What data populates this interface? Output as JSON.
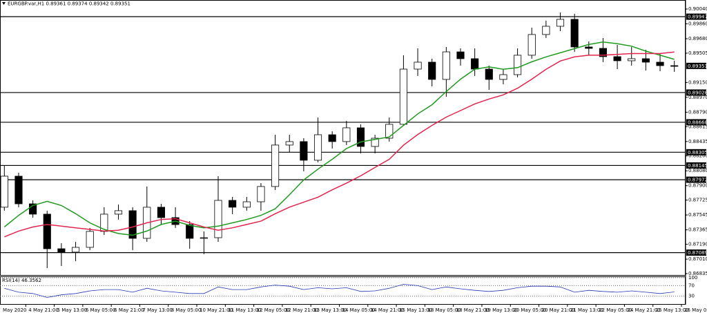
{
  "chart_data": {
    "type": "candlestick",
    "title": "EURGBP.var,H1  0.89361 0.89374 0.89342 0.89351",
    "open": [
      0.87639,
      0.88015,
      0.8768,
      0.87555,
      0.87136,
      0.87095,
      0.87153,
      0.87346,
      0.87555,
      0.87597,
      0.87262,
      0.87639,
      0.87513,
      0.87429,
      0.87262,
      0.8727,
      0.87722,
      0.87639,
      0.87705,
      0.8789,
      0.88392,
      0.88434,
      0.88208,
      0.88517,
      0.88434,
      0.88601,
      0.88375,
      0.88475,
      0.88643,
      0.89312,
      0.89396,
      0.89187,
      0.89521,
      0.89438,
      0.89312,
      0.89187,
      0.89245,
      0.8948,
      0.89731,
      0.89831,
      0.89915,
      0.8958,
      0.89563,
      0.89463,
      0.89413,
      0.89438,
      0.89396,
      0.89354
    ],
    "high": [
      0.88141,
      0.88057,
      0.87722,
      0.87597,
      0.87203,
      0.8722,
      0.87388,
      0.87639,
      0.87672,
      0.87639,
      0.8789,
      0.8768,
      0.87639,
      0.87471,
      0.87346,
      0.88015,
      0.87764,
      0.87764,
      0.87931,
      0.88517,
      0.88517,
      0.88475,
      0.88726,
      0.88559,
      0.88685,
      0.88643,
      0.88517,
      0.88726,
      0.8948,
      0.89563,
      0.89438,
      0.8958,
      0.89563,
      0.89563,
      0.89354,
      0.89312,
      0.89563,
      0.89814,
      0.89898,
      0.89998,
      0.89982,
      0.89647,
      0.89689,
      0.89605,
      0.8958,
      0.89547,
      0.89496,
      0.89413
    ],
    "low": [
      0.87597,
      0.87639,
      0.87513,
      0.86902,
      0.86927,
      0.86986,
      0.8712,
      0.87304,
      0.87488,
      0.8712,
      0.8722,
      0.87429,
      0.87388,
      0.87136,
      0.8707,
      0.8722,
      0.87555,
      0.87597,
      0.87597,
      0.87848,
      0.88308,
      0.88074,
      0.88183,
      0.8835,
      0.88392,
      0.88291,
      0.88291,
      0.88434,
      0.88626,
      0.89229,
      0.89103,
      0.88977,
      0.89354,
      0.89229,
      0.89061,
      0.89128,
      0.89212,
      0.89438,
      0.89689,
      0.89772,
      0.89521,
      0.8948,
      0.89396,
      0.89312,
      0.89354,
      0.89295,
      0.89287,
      0.89279
    ],
    "close": [
      0.88015,
      0.8768,
      0.87555,
      0.87136,
      0.87095,
      0.87153,
      0.87346,
      0.87555,
      0.87597,
      0.87262,
      0.87639,
      0.87513,
      0.87429,
      0.87262,
      0.8727,
      0.87722,
      0.87639,
      0.87705,
      0.8789,
      0.88392,
      0.88434,
      0.88208,
      0.88517,
      0.88434,
      0.88601,
      0.88375,
      0.88475,
      0.88643,
      0.89312,
      0.89396,
      0.89187,
      0.89521,
      0.89438,
      0.89312,
      0.89187,
      0.89245,
      0.8948,
      0.89731,
      0.89831,
      0.89915,
      0.8958,
      0.89563,
      0.89463,
      0.89413,
      0.89438,
      0.89396,
      0.89354,
      0.89351
    ],
    "series": [
      {
        "color": "#1e9a1e",
        "values": [
          0.874,
          0.8754,
          0.8766,
          0.8771,
          0.8766,
          0.8756,
          0.8745,
          0.8737,
          0.8732,
          0.873,
          0.8735,
          0.8743,
          0.8747,
          0.8742,
          0.8739,
          0.8741,
          0.8745,
          0.8749,
          0.8754,
          0.8762,
          0.8779,
          0.8797,
          0.881,
          0.8822,
          0.8835,
          0.8843,
          0.8846,
          0.8849,
          0.8863,
          0.8877,
          0.8888,
          0.8904,
          0.8919,
          0.8931,
          0.8934,
          0.8931,
          0.8933,
          0.894,
          0.8946,
          0.8951,
          0.8956,
          0.8961,
          0.8964,
          0.8962,
          0.8959,
          0.8953,
          0.8948,
          0.8943
        ]
      },
      {
        "color": "#e2244c",
        "values": [
          0.8728,
          0.8735,
          0.874,
          0.8743,
          0.8741,
          0.8739,
          0.8737,
          0.8735,
          0.8736,
          0.874,
          0.8745,
          0.8749,
          0.875,
          0.8745,
          0.874,
          0.8736,
          0.8739,
          0.8743,
          0.8747,
          0.8756,
          0.8764,
          0.877,
          0.8776,
          0.8785,
          0.8793,
          0.8802,
          0.8812,
          0.8822,
          0.8839,
          0.8852,
          0.8863,
          0.8873,
          0.8881,
          0.8889,
          0.8895,
          0.89,
          0.8908,
          0.8919,
          0.8931,
          0.8941,
          0.8946,
          0.8948,
          0.8948,
          0.8949,
          0.895,
          0.895,
          0.895,
          0.8952
        ]
      }
    ],
    "levels": [
      0.89947,
      0.89028,
      0.88668,
      0.88305,
      0.88145,
      0.87972,
      0.87089
    ],
    "last_price": 0.89351,
    "ylim": [
      0.86818,
      0.90149
    ],
    "yticks": [
      {
        "value": 0.9004,
        "label": "0.90040"
      },
      {
        "value": 0.8986,
        "label": "0.89860"
      },
      {
        "value": 0.8968,
        "label": "0.89680"
      },
      0.89505,
      {
        "value": 0.8915,
        "label": "0.89150"
      },
      {
        "value": 0.8897,
        "label": "0.88970"
      },
      {
        "value": 0.8879,
        "label": "0.88790"
      },
      0.88615,
      0.88435,
      {
        "value": 0.8826,
        "label": "0.88260"
      },
      {
        "value": 0.8808,
        "label": "0.88080"
      },
      {
        "value": 0.879,
        "label": "0.87900"
      },
      0.87725,
      0.87545,
      0.87365,
      {
        "value": 0.8719,
        "label": "0.87190"
      },
      {
        "value": 0.8701,
        "label": "0.87010"
      },
      0.86835
    ],
    "xlim": [
      0,
      48
    ],
    "xticks": [
      {
        "value": 0,
        "label": "May 2020"
      },
      {
        "value": 2,
        "label": "4 May 21:00"
      },
      {
        "value": 4,
        "label": "5 May 13:00"
      },
      {
        "value": 6,
        "label": "6 May 05:00"
      },
      {
        "value": 8,
        "label": "6 May 21:00"
      },
      {
        "value": 10,
        "label": "7 May 13:00"
      },
      {
        "value": 12,
        "label": "8 May 05:00"
      },
      {
        "value": 14,
        "label": "10 May 21:00"
      },
      {
        "value": 16,
        "label": "11 May 13:00"
      },
      {
        "value": 18,
        "label": "12 May 05:00"
      },
      {
        "value": 20,
        "label": "12 May 21:00"
      },
      {
        "value": 22,
        "label": "13 May 13:00"
      },
      {
        "value": 24,
        "label": "14 May 05:00"
      },
      {
        "value": 26,
        "label": "14 May 21:00"
      },
      {
        "value": 28,
        "label": "15 May 13:00"
      },
      {
        "value": 30,
        "label": "18 May 05:00"
      },
      {
        "value": 32,
        "label": "18 May 21:00"
      },
      {
        "value": 34,
        "label": "19 May 13:00"
      },
      {
        "value": 36,
        "label": "20 May 05:00"
      },
      {
        "value": 38,
        "label": "20 May 21:00"
      },
      {
        "value": 40,
        "label": "21 May 13:00"
      },
      {
        "value": 42,
        "label": "22 May 05:00"
      },
      {
        "value": 44,
        "label": "24 May 21:00"
      },
      {
        "value": 46,
        "label": "25 May 13:00"
      },
      {
        "value": 48,
        "label": "26 May 05:00"
      }
    ],
    "rsi": {
      "label": "RSI(14) 46.3562",
      "color": "#2536b8",
      "ylim": [
        0,
        100
      ],
      "yticks": [
        100,
        70,
        30
      ],
      "values": [
        60,
        45,
        40,
        25,
        35,
        40,
        50,
        55,
        55,
        45,
        60,
        50,
        45,
        40,
        40,
        65,
        55,
        55,
        65,
        72,
        68,
        55,
        62,
        58,
        62,
        48,
        50,
        60,
        75,
        70,
        55,
        65,
        58,
        52,
        48,
        52,
        62,
        68,
        68,
        65,
        45,
        52,
        48,
        45,
        50,
        45,
        40,
        46
      ]
    }
  }
}
